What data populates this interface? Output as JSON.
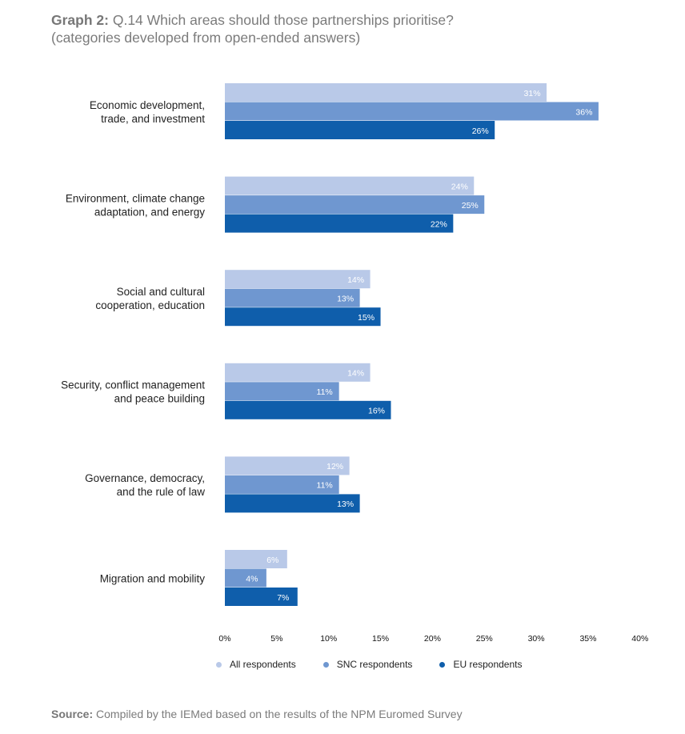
{
  "title": {
    "prefix": "Graph 2:",
    "text": "Q.14 Which areas should those partnerships prioritise?",
    "subtitle": "(categories developed from open-ended answers)"
  },
  "source": {
    "prefix": "Source:",
    "text": "Compiled by the IEMed based on the results of the NPM Euromed Survey"
  },
  "chart_data": {
    "type": "bar",
    "orientation": "horizontal",
    "categories": [
      [
        "Economic development,",
        "trade, and investment"
      ],
      [
        "Environment, climate change",
        "adaptation, and energy"
      ],
      [
        "Social and cultural",
        "cooperation, education"
      ],
      [
        "Security, conflict management",
        "and peace building"
      ],
      [
        "Governance, democracy,",
        "and the rule of law"
      ],
      [
        "Migration and mobility"
      ]
    ],
    "series": [
      {
        "name": "All respondents",
        "color": "#b9c9e8",
        "values": [
          31,
          24,
          14,
          14,
          12,
          6
        ],
        "labels": [
          "31%",
          "24%",
          "14%",
          "14%",
          "12%",
          "6%"
        ]
      },
      {
        "name": "SNC respondents",
        "color": "#6f97d0",
        "values": [
          36,
          25,
          13,
          11,
          11,
          4
        ],
        "labels": [
          "36%",
          "25%",
          "13%",
          "11%",
          "11%",
          "4%"
        ]
      },
      {
        "name": "EU respondents",
        "color": "#0f5eab",
        "values": [
          26,
          22,
          15,
          16,
          13,
          7
        ],
        "labels": [
          "26%",
          "22%",
          "15%",
          "16%",
          "13%",
          "7%"
        ]
      }
    ],
    "xlim": [
      0,
      40
    ],
    "xticks": [
      "0%",
      "5%",
      "10%",
      "15%",
      "20%",
      "25%",
      "30%",
      "35%",
      "40%"
    ],
    "legend_position": "bottom",
    "grid": false
  }
}
